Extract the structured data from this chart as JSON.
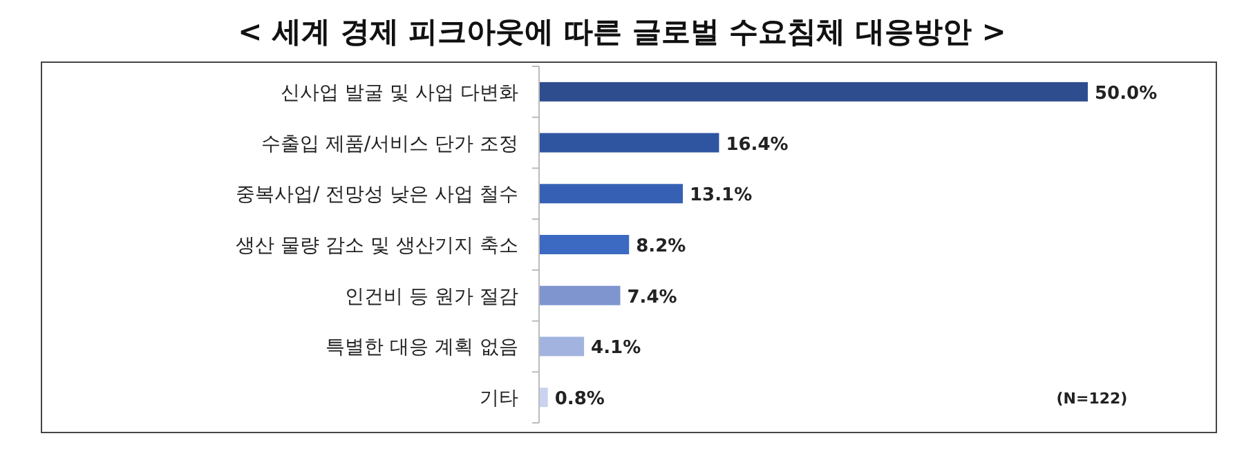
{
  "chart_data": {
    "type": "bar",
    "orientation": "horizontal",
    "title": "< 세계 경제 피크아웃에 따른 글로벌 수요침체 대응방안 >",
    "categories": [
      "신사업 발굴 및 사업 다변화",
      "수출입 제품/서비스 단가 조정",
      "중복사업/ 전망성 낮은 사업 철수",
      "생산 물량 감소 및 생산기지 축소",
      "인건비 등 원가 절감",
      "특별한 대응 계획 없음",
      "기타"
    ],
    "values": [
      50.0,
      16.4,
      13.1,
      8.2,
      7.4,
      4.1,
      0.8
    ],
    "colors": [
      "#2e4d8f",
      "#2f54a0",
      "#3560b4",
      "#3c69c2",
      "#7e95cf",
      "#a1b3de",
      "#c9d3ef"
    ],
    "value_labels": [
      "50.0%",
      "16.4%",
      "13.1%",
      "8.2%",
      "7.4%",
      "4.1%",
      "0.8%"
    ],
    "annotations": [
      "(N=122)"
    ]
  }
}
